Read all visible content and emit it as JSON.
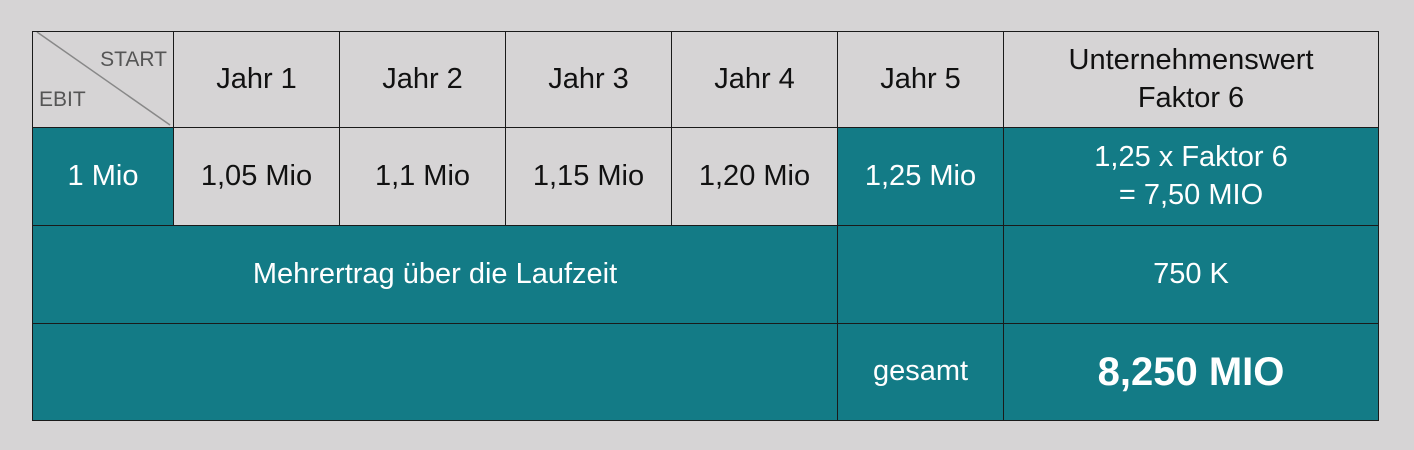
{
  "colors": {
    "teal": "#137b86",
    "grey": "#d6d4d5"
  },
  "header": {
    "corner_top": "START",
    "corner_bottom": "EBIT",
    "years": [
      "Jahr 1",
      "Jahr 2",
      "Jahr 3",
      "Jahr 4",
      "Jahr 5"
    ],
    "value_line1": "Unternehmenswert",
    "value_line2": "Faktor 6"
  },
  "ebit_row": {
    "start": "1 Mio",
    "years": [
      "1,05 Mio",
      "1,1 Mio",
      "1,15 Mio",
      "1,20 Mio",
      "1,25 Mio"
    ],
    "value_line1": "1,25 x Faktor 6",
    "value_line2": "= 7,50 MIO"
  },
  "extra_row": {
    "label": "Mehrertrag über die Laufzeit",
    "value": "750 K"
  },
  "total_row": {
    "label": "gesamt",
    "value": "8,250 MIO"
  }
}
